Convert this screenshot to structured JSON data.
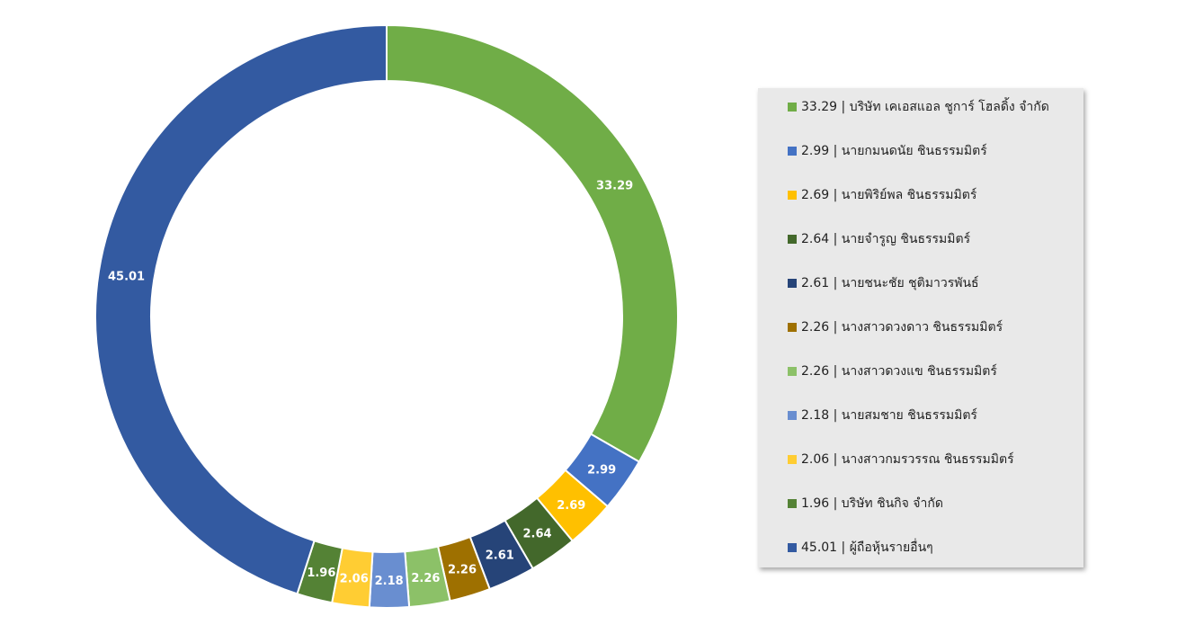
{
  "chart_data": {
    "type": "pie",
    "style": "donut",
    "title": "",
    "start": "top, clockwise",
    "legend_position": "right",
    "slices": [
      {
        "value": 33.29,
        "label": "33.29",
        "legend": "33.29 | บริษัท เคเอสแอล ชูการ์ โฮลดิ้ง จำกัด",
        "color": "#70ad47"
      },
      {
        "value": 2.99,
        "label": "2.99",
        "legend": "2.99 | นายกมนดนัย ชินธรรมมิตร์",
        "color": "#4472c4"
      },
      {
        "value": 2.69,
        "label": "2.69",
        "legend": "2.69 | นายพิริย์พล ชินธรรมมิตร์",
        "color": "#ffc000"
      },
      {
        "value": 2.64,
        "label": "2.64",
        "legend": "2.64 | นายจำรูญ ชินธรรมมิตร์",
        "color": "#43682b"
      },
      {
        "value": 2.61,
        "label": "2.61",
        "legend": "2.61 | นายชนะชัย ชุติมาวรพันธ์",
        "color": "#264478"
      },
      {
        "value": 2.26,
        "label": "2.26",
        "legend": "2.26 | นางสาวดวงดาว ชินธรรมมิตร์",
        "color": "#9e7000"
      },
      {
        "value": 2.26,
        "label": "2.26",
        "legend": "2.26 | นางสาวดวงแข ชินธรรมมิตร์",
        "color": "#8cc168"
      },
      {
        "value": 2.18,
        "label": "2.18",
        "legend": "2.18 | นายสมชาย ชินธรรมมิตร์",
        "color": "#698ed0"
      },
      {
        "value": 2.06,
        "label": "2.06",
        "legend": "2.06 | นางสาวกมรวรรณ ชินธรรมมิตร์",
        "color": "#ffcd33"
      },
      {
        "value": 1.96,
        "label": "1.96",
        "legend": "1.96 | บริษัท ชินกิจ จำกัด",
        "color": "#548235"
      },
      {
        "value": 45.01,
        "label": "45.01",
        "legend": "45.01 | ผู้ถือหุ้นรายอื่นๆ",
        "color": "#335aa1"
      }
    ]
  }
}
